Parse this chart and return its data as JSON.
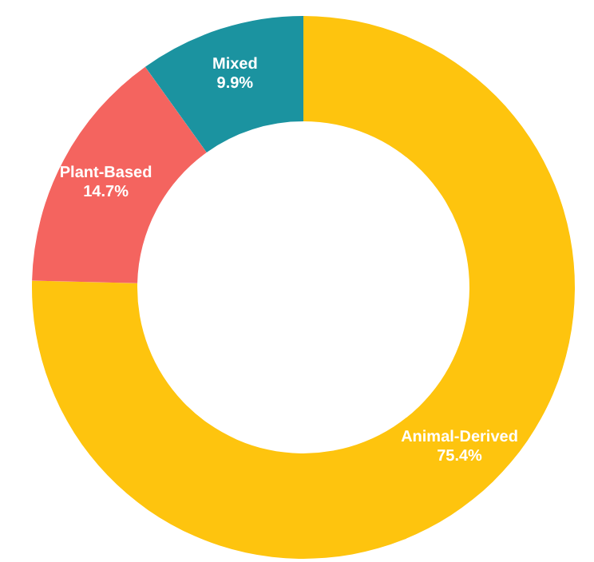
{
  "chart_data": {
    "type": "donut",
    "categories": [
      "Animal-Derived",
      "Plant-Based",
      "Mixed"
    ],
    "values": [
      75.4,
      14.7,
      9.9
    ],
    "colors": [
      "#fec40e",
      "#f4645f",
      "#1b93a0"
    ],
    "value_labels": [
      "75.4%",
      "14.7%",
      "9.9%"
    ],
    "legend": false
  }
}
